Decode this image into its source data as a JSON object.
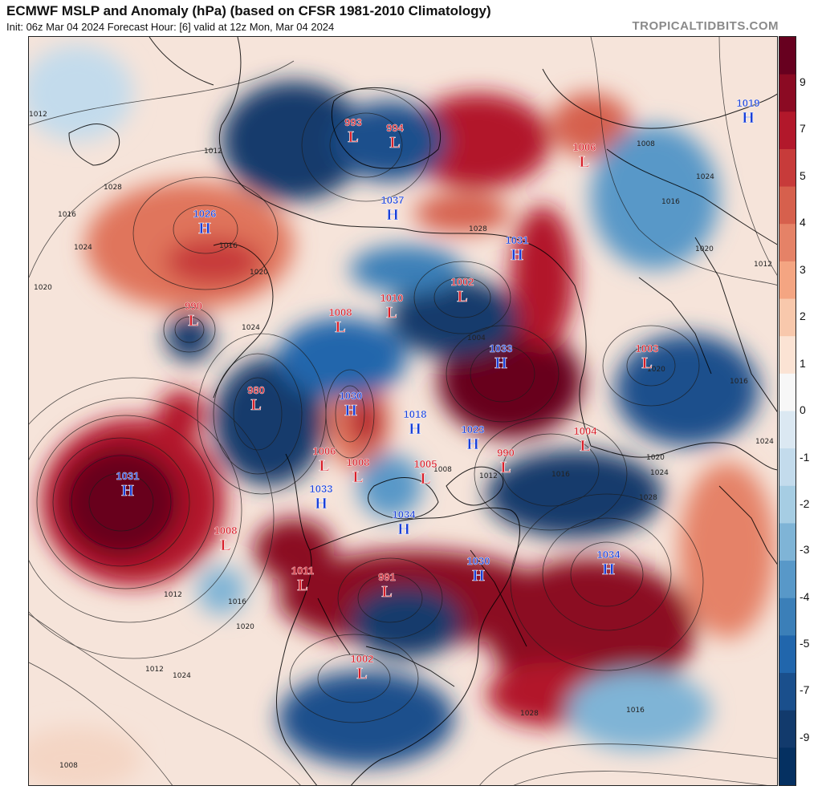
{
  "header": {
    "title": "ECMWF MSLP and Anomaly (hPa) (based on CFSR 1981-2010 Climatology)",
    "subtitle": "Init: 06z Mar 04 2024   Forecast Hour: [6]   valid at 12z Mon, Mar 04 2024",
    "site": "TROPICALTIDBITS.COM"
  },
  "colorbar": {
    "labels": [
      "9",
      "7",
      "5",
      "4",
      "3",
      "2",
      "1",
      "0",
      "-1",
      "-2",
      "-3",
      "-4",
      "-5",
      "-7",
      "-9"
    ],
    "colors": [
      "#67001f",
      "#8b0a23",
      "#b2182b",
      "#c73b3a",
      "#d6604d",
      "#e58267",
      "#f4a582",
      "#f8c8ac",
      "#fbe3d4",
      "#f7f7f7",
      "#dbe8f2",
      "#c3dbec",
      "#a6cde3",
      "#7fb4d6",
      "#5898c8",
      "#3b7fb8",
      "#2166ac",
      "#1a4f8c",
      "#123a6c",
      "#053061"
    ]
  },
  "colors": {
    "high": "#1a3fd8",
    "low": "#d8202a",
    "frame": "#222222"
  },
  "centers": [
    {
      "type": "L",
      "value": "993"
    },
    {
      "type": "L",
      "value": "994"
    },
    {
      "type": "L",
      "value": "1006"
    },
    {
      "type": "H",
      "value": "1019"
    },
    {
      "type": "H",
      "value": "1026"
    },
    {
      "type": "H",
      "value": "1037"
    },
    {
      "type": "H",
      "value": "1031"
    },
    {
      "type": "L",
      "value": "1002"
    },
    {
      "type": "L",
      "value": "990"
    },
    {
      "type": "L",
      "value": "1008"
    },
    {
      "type": "L",
      "value": "1010"
    },
    {
      "type": "H",
      "value": "1033"
    },
    {
      "type": "L",
      "value": "1003"
    },
    {
      "type": "L",
      "value": "980"
    },
    {
      "type": "H",
      "value": "1030"
    },
    {
      "type": "H",
      "value": "1018"
    },
    {
      "type": "H",
      "value": "1023"
    },
    {
      "type": "L",
      "value": "990"
    },
    {
      "type": "L",
      "value": "1004"
    },
    {
      "type": "H",
      "value": "1031"
    },
    {
      "type": "L",
      "value": "1006"
    },
    {
      "type": "L",
      "value": "1008"
    },
    {
      "type": "L",
      "value": "1005"
    },
    {
      "type": "H",
      "value": "1033"
    },
    {
      "type": "H",
      "value": "1034"
    },
    {
      "type": "L",
      "value": "1008"
    },
    {
      "type": "L",
      "value": "1011"
    },
    {
      "type": "L",
      "value": "991"
    },
    {
      "type": "H",
      "value": "1030"
    },
    {
      "type": "H",
      "value": "1034"
    },
    {
      "type": "L",
      "value": "1002"
    }
  ],
  "isobar_labels": [
    "1012",
    "1016",
    "1020",
    "1024",
    "1028",
    "1012",
    "1016",
    "1020",
    "1024",
    "1028",
    "1004",
    "1008",
    "1012",
    "1016",
    "1020",
    "1024",
    "1028",
    "1008",
    "1016",
    "1020",
    "1024",
    "1012",
    "1016",
    "1020",
    "1024",
    "1028",
    "1012",
    "1016",
    "1020",
    "1024",
    "1012",
    "1008",
    "1016"
  ]
}
